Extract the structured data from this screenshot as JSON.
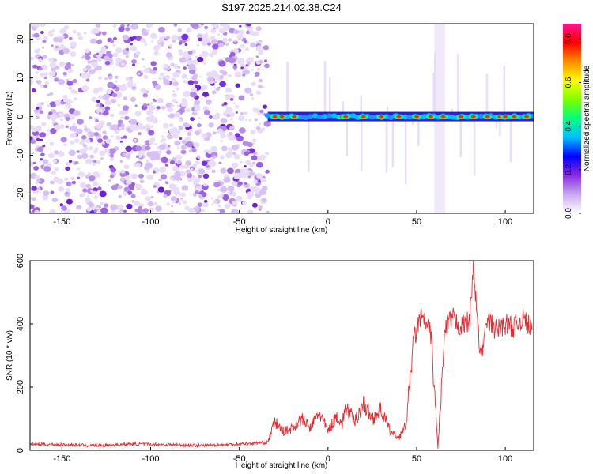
{
  "title": "S197.2025.214.02.38.C24",
  "colorbar": {
    "label": "Normalized spectral amplitude",
    "ticks": [
      "0.0",
      "0.2",
      "0.4",
      "0.6",
      "0.8"
    ],
    "tick_values": [
      0.0,
      0.2,
      0.4,
      0.6,
      0.8
    ],
    "range": [
      0,
      0.87
    ],
    "colors": [
      "#ffffff",
      "#c8a8f0",
      "#8a2be2",
      "#0000ff",
      "#00bfff",
      "#00ff7f",
      "#7fff00",
      "#ffff00",
      "#ff8c00",
      "#ff0000",
      "#ff1493"
    ]
  },
  "chart_data": [
    {
      "type": "heatmap",
      "xlabel": "Height of straight line (km)",
      "ylabel": "Frequency (Hz)",
      "xlim": [
        -168,
        116
      ],
      "ylim": [
        -25,
        24
      ],
      "x_ticks": [
        -150,
        -100,
        -50,
        0,
        50,
        100
      ],
      "y_ticks": [
        -20,
        -10,
        0,
        10,
        20
      ],
      "noise_region_x": [
        -168,
        -34
      ],
      "signal_frequency_hz": 0,
      "gap_x": [
        60,
        66
      ],
      "hot_spots_x": [
        -30,
        -26,
        -19,
        8,
        10,
        20,
        30,
        40,
        50,
        58,
        65,
        75,
        82,
        90,
        97,
        100,
        105,
        112
      ]
    },
    {
      "type": "line",
      "xlabel": "Height of straight line (km)",
      "ylabel": "SNR (10 * v/v)",
      "xlim": [
        -168,
        116
      ],
      "ylim": [
        0,
        600
      ],
      "x_ticks": [
        -150,
        -100,
        -50,
        0,
        50,
        100
      ],
      "y_ticks": [
        0,
        200,
        400,
        600
      ],
      "color": "#e8292e",
      "series": [
        {
          "x": [
            -168,
            -150,
            -130,
            -110,
            -90,
            -70,
            -50,
            -34,
            -30,
            -25,
            -20,
            -15,
            -10,
            -5,
            0,
            5,
            8,
            10,
            15,
            20,
            25,
            30,
            35,
            40,
            44,
            46,
            48,
            50,
            52,
            55,
            58,
            62,
            66,
            70,
            75,
            80,
            82,
            84,
            86,
            90,
            95,
            100,
            105,
            110,
            115
          ],
          "y": [
            20,
            18,
            15,
            20,
            18,
            15,
            20,
            25,
            90,
            60,
            70,
            100,
            70,
            120,
            60,
            110,
            80,
            140,
            90,
            150,
            100,
            130,
            60,
            40,
            80,
            200,
            340,
            380,
            420,
            400,
            370,
            10,
            380,
            420,
            390,
            410,
            600,
            420,
            300,
            410,
            380,
            400,
            390,
            420,
            380
          ]
        }
      ]
    }
  ]
}
